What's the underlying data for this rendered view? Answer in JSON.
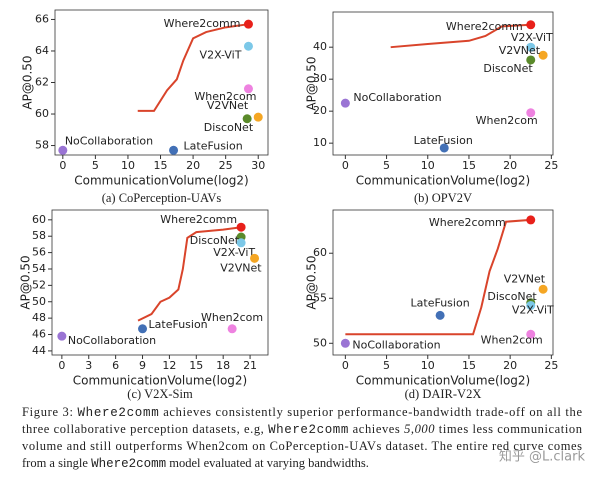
{
  "chart_data": [
    {
      "type": "scatter",
      "subtitle": "(a) CoPerception-UAVs",
      "xlabel": "CommunicationVolume(log2)",
      "ylabel": "AP@0.50",
      "xlim": [
        -1.2,
        31.5
      ],
      "ylim": [
        57.4,
        66.6
      ],
      "xticks": [
        0,
        5,
        10,
        15,
        20,
        25,
        30
      ],
      "yticks": [
        58,
        60,
        62,
        64,
        66
      ],
      "curve": {
        "color": "#d9442b",
        "x": [
          11.5,
          14,
          16,
          17.5,
          18.5,
          20,
          22,
          25,
          28.5
        ],
        "y": [
          60.2,
          60.2,
          61.5,
          62.2,
          63.4,
          64.8,
          65.2,
          65.5,
          65.7
        ]
      },
      "series": [
        {
          "name": "Where2comm",
          "color": "#e8201a",
          "x": 28.5,
          "y": 65.7
        },
        {
          "name": "V2X-ViT",
          "color": "#7cc8e8",
          "x": 28.5,
          "y": 64.3
        },
        {
          "name": "When2com",
          "color": "#ee82e0",
          "x": 28.5,
          "y": 61.6
        },
        {
          "name": "DiscoNet",
          "color": "#5a8a2a",
          "x": 28.3,
          "y": 59.7
        },
        {
          "name": "V2VNet",
          "color": "#f5a623",
          "x": 30,
          "y": 59.8
        },
        {
          "name": "LateFusion",
          "color": "#4270b6",
          "x": 17,
          "y": 57.7
        },
        {
          "name": "NoCollaboration",
          "color": "#9a74d4",
          "x": 0,
          "y": 57.7
        }
      ]
    },
    {
      "type": "scatter",
      "subtitle": "(b) OPV2V",
      "xlabel": "CommunicationVolume(log2)",
      "ylabel": "AP@0.50",
      "xlim": [
        -1.5,
        25.2
      ],
      "ylim": [
        6.3,
        51
      ],
      "xticks": [
        0,
        5,
        10,
        15,
        20,
        25
      ],
      "yticks": [
        10,
        20,
        30,
        40
      ],
      "curve": {
        "color": "#d9442b",
        "x": [
          5.5,
          10,
          15,
          17,
          19,
          22.5
        ],
        "y": [
          40,
          41,
          42,
          43.5,
          46.5,
          47
        ]
      },
      "series": [
        {
          "name": "Where2comm",
          "color": "#e8201a",
          "x": 22.5,
          "y": 47
        },
        {
          "name": "V2X-ViT",
          "color": "#7cc8e8",
          "x": 22.5,
          "y": 40
        },
        {
          "name": "V2VNet",
          "color": "#f5a623",
          "x": 24,
          "y": 37.5
        },
        {
          "name": "DiscoNet",
          "color": "#5a8a2a",
          "x": 22.5,
          "y": 36
        },
        {
          "name": "When2com",
          "color": "#ee82e0",
          "x": 22.5,
          "y": 19.5
        },
        {
          "name": "LateFusion",
          "color": "#4270b6",
          "x": 12,
          "y": 8.5
        },
        {
          "name": "NoCollaboration",
          "color": "#9a74d4",
          "x": 0,
          "y": 22.5
        }
      ]
    },
    {
      "type": "scatter",
      "subtitle": "(c) V2X-Sim",
      "xlabel": "CommunicationVolume(log2)",
      "ylabel": "AP@0.50",
      "xlim": [
        -1.1,
        23
      ],
      "ylim": [
        43.5,
        61.2
      ],
      "xticks": [
        0,
        3,
        6,
        9,
        12,
        15,
        18,
        21
      ],
      "yticks": [
        44,
        46,
        48,
        50,
        52,
        54,
        56,
        58,
        60
      ],
      "curve": {
        "color": "#d9442b",
        "x": [
          8.5,
          10,
          11,
          12,
          13,
          13.5,
          14,
          15,
          18,
          20
        ],
        "y": [
          47.7,
          48.5,
          50,
          50.5,
          51.5,
          54,
          57.8,
          58.5,
          58.8,
          59.1
        ]
      },
      "series": [
        {
          "name": "Where2comm",
          "color": "#e8201a",
          "x": 20,
          "y": 59.1
        },
        {
          "name": "DiscoNet",
          "color": "#5a8a2a",
          "x": 20,
          "y": 57.9
        },
        {
          "name": "V2X-ViT",
          "color": "#7cc8e8",
          "x": 20,
          "y": 57.2
        },
        {
          "name": "V2VNet",
          "color": "#f5a623",
          "x": 21.5,
          "y": 55.3
        },
        {
          "name": "When2com",
          "color": "#ee82e0",
          "x": 19,
          "y": 46.7
        },
        {
          "name": "LateFusion",
          "color": "#4270b6",
          "x": 9,
          "y": 46.7
        },
        {
          "name": "NoCollaboration",
          "color": "#9a74d4",
          "x": 0,
          "y": 45.8
        }
      ]
    },
    {
      "type": "scatter",
      "subtitle": "(d) DAIR-V2X",
      "xlabel": "CommunicationVolume(log2)",
      "ylabel": "AP@0.50",
      "xlim": [
        -1.5,
        25.2
      ],
      "ylim": [
        48.7,
        64.8
      ],
      "xticks": [
        0,
        5,
        10,
        15,
        20,
        25
      ],
      "yticks": [
        50,
        55,
        60
      ],
      "curve": {
        "color": "#d9442b",
        "x": [
          0,
          15.5,
          16.5,
          17.5,
          18.5,
          19.5,
          22.5
        ],
        "y": [
          51,
          51,
          54,
          58,
          60.5,
          63.5,
          63.7
        ]
      },
      "series": [
        {
          "name": "Where2comm",
          "color": "#e8201a",
          "x": 22.5,
          "y": 63.7
        },
        {
          "name": "V2VNet",
          "color": "#f5a623",
          "x": 24,
          "y": 56
        },
        {
          "name": "DiscoNet",
          "color": "#5a8a2a",
          "x": 22.5,
          "y": 54.5
        },
        {
          "name": "V2X-ViT",
          "color": "#7cc8e8",
          "x": 22.5,
          "y": 54.2
        },
        {
          "name": "When2com",
          "color": "#ee82e0",
          "x": 22.5,
          "y": 51
        },
        {
          "name": "LateFusion",
          "color": "#4270b6",
          "x": 11.5,
          "y": 53.1
        },
        {
          "name": "NoCollaboration",
          "color": "#9a74d4",
          "x": 0,
          "y": 50
        }
      ]
    }
  ],
  "caption": [
    [
      {
        "text": "Figure 3: "
      },
      {
        "text": "Where2comm",
        "font": "mono"
      },
      {
        "text": " achieves consistently superior performance-bandwidth trade-off on all the"
      }
    ],
    [
      {
        "text": "three collaborative perception datasets, e.g, "
      },
      {
        "text": "Where2comm",
        "font": "mono"
      },
      {
        "text": " achieves "
      },
      {
        "text": "5,000",
        "font": "italic"
      },
      {
        "text": " times less communication"
      }
    ],
    [
      {
        "text": "volume and still outperforms When2com on CoPerception-UAVs dataset. The entire red curve comes"
      }
    ],
    [
      {
        "text": "from a single "
      },
      {
        "text": "Where2comm",
        "font": "mono"
      },
      {
        "text": " model evaluated at varying bandwidths."
      }
    ]
  ],
  "watermark": "知乎 @L.clark"
}
